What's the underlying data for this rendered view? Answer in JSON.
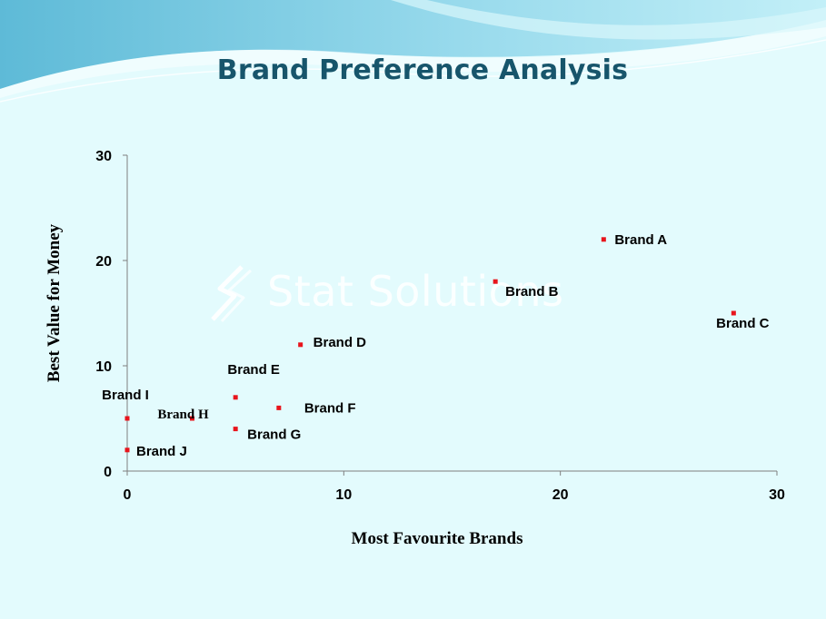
{
  "slide": {
    "title": "Brand Preference Analysis",
    "watermark": "Stat Solutions",
    "colors": {
      "background": "#e3fbfd",
      "title": "#17556b",
      "marker": "#e8141c",
      "swoosh": "#67c2dc"
    }
  },
  "chart_data": {
    "type": "scatter",
    "title": "",
    "xlabel": "Most Favourite Brands",
    "ylabel": "Best Value for Money",
    "xlim": [
      0,
      30
    ],
    "ylim": [
      0,
      30
    ],
    "xticks": [
      0,
      10,
      20,
      30
    ],
    "yticks": [
      0,
      10,
      20,
      30
    ],
    "grid": false,
    "marker_color": "#e8141c",
    "points": [
      {
        "label": "Brand A",
        "x": 22,
        "y": 22
      },
      {
        "label": "Brand B",
        "x": 17,
        "y": 18
      },
      {
        "label": "Brand C",
        "x": 28,
        "y": 15
      },
      {
        "label": "Brand D",
        "x": 8,
        "y": 12
      },
      {
        "label": "Brand E",
        "x": 5,
        "y": 7
      },
      {
        "label": "Brand F",
        "x": 7,
        "y": 6
      },
      {
        "label": "Brand G",
        "x": 5,
        "y": 4
      },
      {
        "label": "Brand H",
        "x": 3,
        "y": 5
      },
      {
        "label": "Brand I",
        "x": 0,
        "y": 5
      },
      {
        "label": "Brand J",
        "x": 0,
        "y": 2
      }
    ]
  }
}
